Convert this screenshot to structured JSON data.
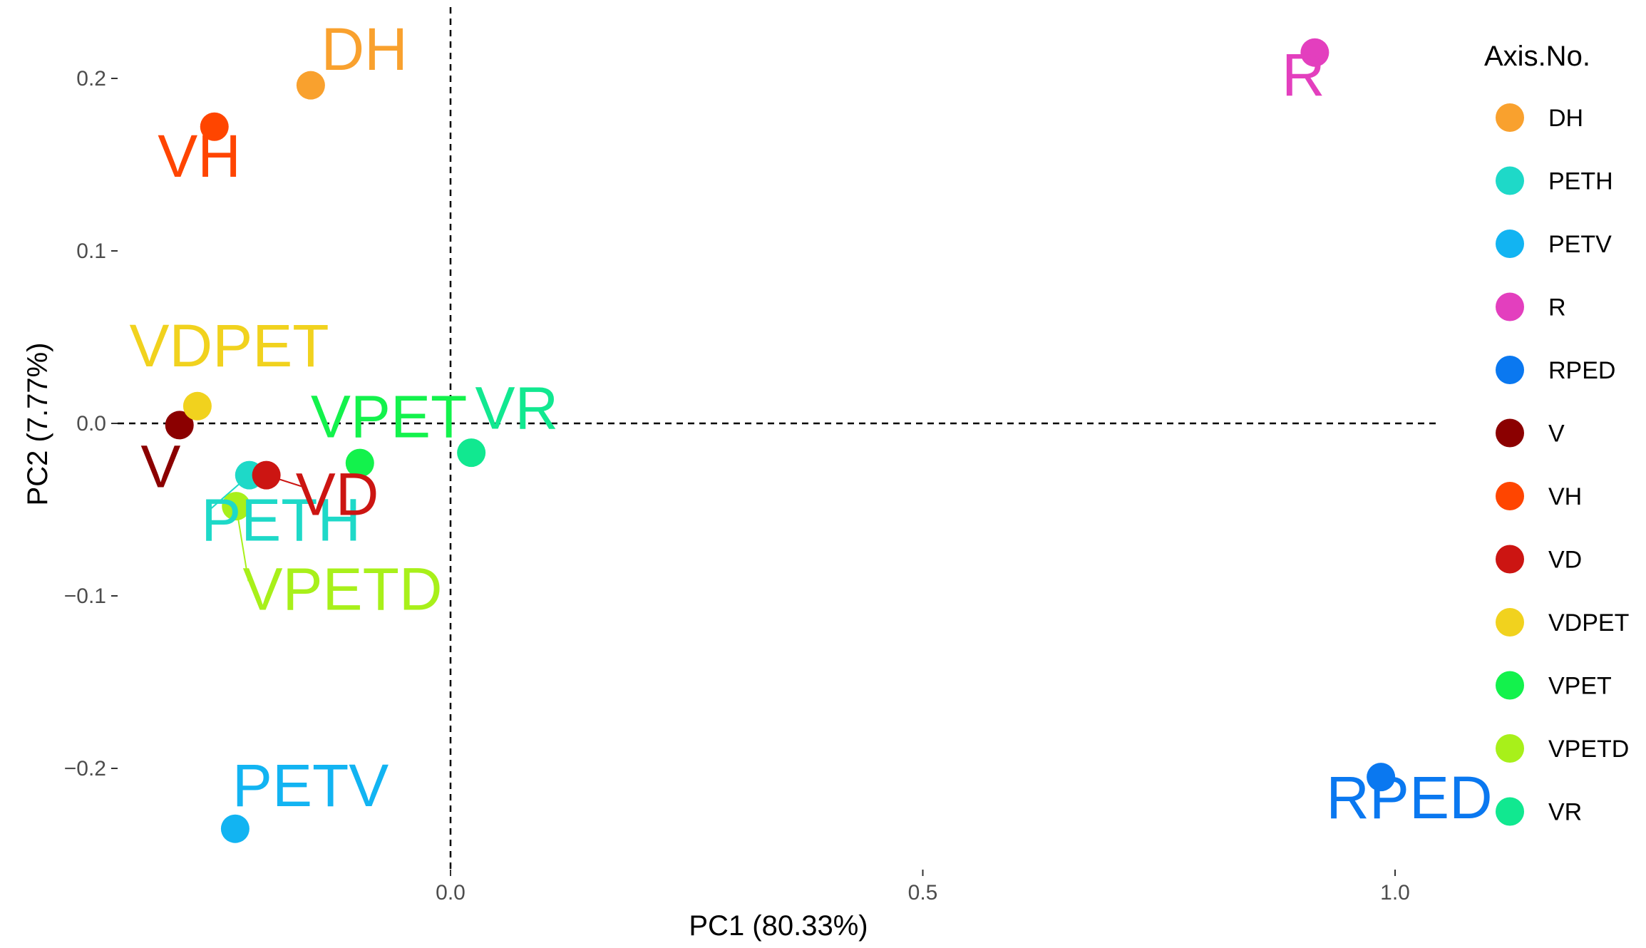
{
  "chart_data": {
    "type": "scatter",
    "xlabel": "PC1 (80.33%)",
    "ylabel": "PC2 (7.77%)",
    "xlim": [
      -0.28,
      1.05
    ],
    "ylim": [
      -0.26,
      0.24
    ],
    "x_ticks": [
      0.0,
      0.5,
      1.0
    ],
    "x_tick_labels": [
      "0.0",
      "0.5",
      "1.0"
    ],
    "y_ticks": [
      0.2,
      0.1,
      0.0,
      -0.1,
      -0.2
    ],
    "y_tick_labels": [
      "0.2",
      "0.1",
      "0.0",
      "−0.1",
      "−0.2"
    ],
    "reference_lines": {
      "x": 0,
      "y": 0,
      "style": "dashed"
    },
    "grid": false,
    "legend": {
      "title": "Axis.No.",
      "position": "right",
      "entries": [
        "DH",
        "PETH",
        "PETV",
        "R",
        "RPED",
        "V",
        "VH",
        "VD",
        "VDPET",
        "VPET",
        "VPETD",
        "VR"
      ]
    },
    "points": [
      {
        "label": "DH",
        "x": -0.148,
        "y": 0.196,
        "color": "#F9A12E"
      },
      {
        "label": "PETH",
        "x": -0.213,
        "y": -0.03,
        "color": "#1ED9C8"
      },
      {
        "label": "PETV",
        "x": -0.228,
        "y": -0.235,
        "color": "#12B4F2"
      },
      {
        "label": "R",
        "x": 0.915,
        "y": 0.215,
        "color": "#E33FBE"
      },
      {
        "label": "RPED",
        "x": 0.985,
        "y": -0.205,
        "color": "#0A78F0"
      },
      {
        "label": "V",
        "x": -0.287,
        "y": -0.001,
        "color": "#8B0000"
      },
      {
        "label": "VH",
        "x": -0.25,
        "y": 0.172,
        "color": "#FF4500"
      },
      {
        "label": "VD",
        "x": -0.195,
        "y": -0.03,
        "color": "#CC1512"
      },
      {
        "label": "VDPET",
        "x": -0.268,
        "y": 0.01,
        "color": "#F1D21E"
      },
      {
        "label": "VPET",
        "x": -0.096,
        "y": -0.023,
        "color": "#13F24C"
      },
      {
        "label": "VPETD",
        "x": -0.227,
        "y": -0.048,
        "color": "#A8F01A"
      },
      {
        "label": "VR",
        "x": 0.022,
        "y": -0.017,
        "color": "#11E890"
      }
    ],
    "label_positions": [
      {
        "label": "DH",
        "x": -0.137,
        "y": 0.205,
        "leader": false
      },
      {
        "label": "PETH",
        "x": -0.264,
        "y": -0.068,
        "leader": true
      },
      {
        "label": "PETV",
        "x": -0.231,
        "y": -0.222,
        "leader": false
      },
      {
        "label": "R",
        "x": 0.88,
        "y": 0.19,
        "leader": false
      },
      {
        "label": "RPED",
        "x": 0.927,
        "y": -0.229,
        "leader": false
      },
      {
        "label": "V",
        "x": -0.328,
        "y": -0.037,
        "leader": false
      },
      {
        "label": "VH",
        "x": -0.31,
        "y": 0.143,
        "leader": false
      },
      {
        "label": "VD",
        "x": -0.164,
        "y": -0.053,
        "leader": true
      },
      {
        "label": "VDPET",
        "x": -0.34,
        "y": 0.033,
        "leader": false
      },
      {
        "label": "VPET",
        "x": -0.148,
        "y": -0.008,
        "leader": false
      },
      {
        "label": "VPETD",
        "x": -0.22,
        "y": -0.108,
        "leader": true
      },
      {
        "label": "VR",
        "x": 0.026,
        "y": -0.003,
        "leader": false
      }
    ]
  }
}
